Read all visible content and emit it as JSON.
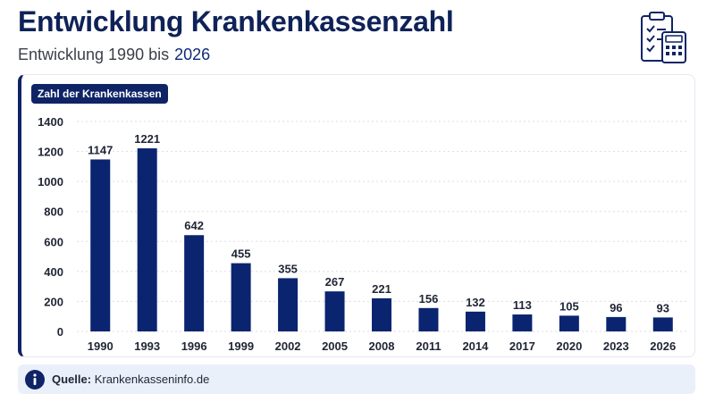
{
  "header": {
    "title": "Entwicklung Krankenkassenzahl",
    "subtitle": "Entwicklung 1990 bis",
    "subtitle_accent": "2026",
    "icon": "checklist-calculator-icon"
  },
  "chart_label": "Zahl der Krankenkassen",
  "source": {
    "label": "Quelle:",
    "text": "Krankenkasseninfo.de",
    "icon": "info-icon"
  },
  "colors": {
    "bar": "#0a2470",
    "accent": "#0f2466",
    "grid": "#d9dde6"
  },
  "chart_data": {
    "type": "bar",
    "title": "Entwicklung Krankenkassenzahl",
    "xlabel": "",
    "ylabel": "",
    "categories": [
      "1990",
      "1993",
      "1996",
      "1999",
      "2002",
      "2005",
      "2008",
      "2011",
      "2014",
      "2017",
      "2020",
      "2023",
      "2026"
    ],
    "series": [
      {
        "name": "Zahl der Krankenkassen",
        "values": [
          1147,
          1221,
          642,
          455,
          355,
          267,
          221,
          156,
          132,
          113,
          105,
          96,
          93
        ]
      }
    ],
    "ylim": [
      0,
      1400
    ],
    "yticks": [
      0,
      200,
      400,
      600,
      800,
      1000,
      1200,
      1400
    ],
    "grid": true,
    "grid_style": "dashed-horizontal",
    "data_labels": true,
    "legend": "none"
  }
}
